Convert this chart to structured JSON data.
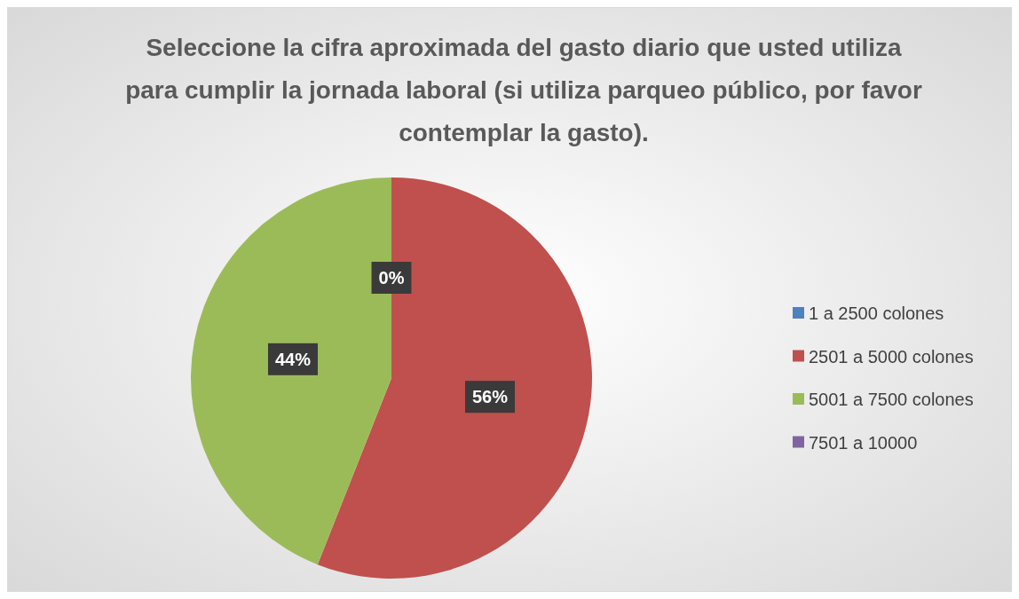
{
  "chart_data": {
    "type": "pie",
    "title": "Seleccione la cifra aproximada del gasto diario que usted utiliza para cumplir la jornada laboral (si utiliza parqueo público, por favor contemplar la gasto).",
    "categories": [
      "1 a 2500 colones",
      "2501 a 5000 colones",
      "5001 a 7500 colones",
      "7501 a 10000"
    ],
    "values": [
      0,
      56,
      44,
      0
    ],
    "colors": [
      "#4f81bd",
      "#c0504d",
      "#9bbb59",
      "#8064a2"
    ],
    "value_labels": [
      "0%",
      "56%",
      "44%",
      null
    ],
    "legend": "right"
  }
}
